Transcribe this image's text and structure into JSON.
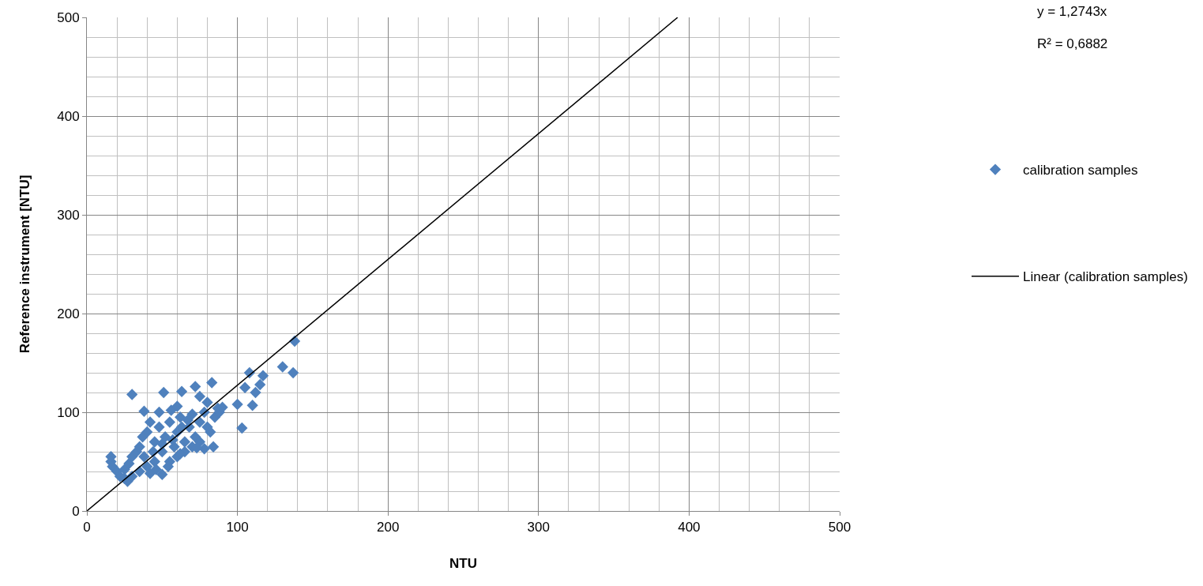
{
  "chart_data": {
    "type": "scatter",
    "xlabel": "NTU",
    "ylabel": "Reference instrument [NTU]",
    "xlim": [
      0,
      500
    ],
    "ylim": [
      0,
      500
    ],
    "xticks": [
      0,
      100,
      200,
      300,
      400,
      500
    ],
    "yticks": [
      0,
      100,
      200,
      300,
      400,
      500
    ],
    "grid": true,
    "legend": "right",
    "marker": "diamond",
    "annotations": [
      "y = 1,2743x",
      "R² = 0,6882"
    ],
    "series": [
      {
        "name": "calibration samples",
        "color": "#4f81bd",
        "x": [
          30,
          51,
          63,
          72,
          83,
          108,
          130,
          137,
          138,
          103,
          100,
          117,
          112,
          110,
          105,
          115,
          38,
          48,
          56,
          60,
          75,
          80,
          87,
          84,
          78,
          50,
          42,
          27,
          16,
          16,
          17,
          20,
          22,
          25,
          28,
          30,
          33,
          35,
          37,
          40,
          42,
          45,
          48,
          50,
          52,
          55,
          58,
          60,
          62,
          65,
          68,
          70,
          72,
          75,
          78,
          80,
          85,
          88,
          90,
          55,
          60,
          45,
          40,
          35,
          30,
          25,
          65,
          70,
          75,
          82,
          38,
          44,
          50,
          57,
          63,
          67,
          46,
          54,
          62,
          73
        ],
        "values": [
          118,
          120,
          121,
          126,
          130,
          140,
          146,
          140,
          172,
          84,
          108,
          137,
          120,
          107,
          125,
          128,
          101,
          100,
          102,
          106,
          116,
          110,
          104,
          65,
          63,
          37,
          38,
          30,
          55,
          50,
          45,
          40,
          35,
          42,
          48,
          55,
          60,
          65,
          75,
          80,
          90,
          70,
          85,
          60,
          75,
          90,
          65,
          80,
          95,
          70,
          85,
          98,
          75,
          90,
          100,
          85,
          95,
          100,
          105,
          50,
          55,
          50,
          45,
          40,
          35,
          33,
          60,
          65,
          70,
          80,
          55,
          60,
          68,
          72,
          85,
          92,
          42,
          45,
          58,
          64
        ]
      },
      {
        "name": "Linear (calibration samples)",
        "type": "line",
        "color": "#000000",
        "line_style": "solid",
        "marker": "none",
        "x": [
          0,
          392.4
        ],
        "values": [
          0,
          500
        ]
      }
    ]
  }
}
